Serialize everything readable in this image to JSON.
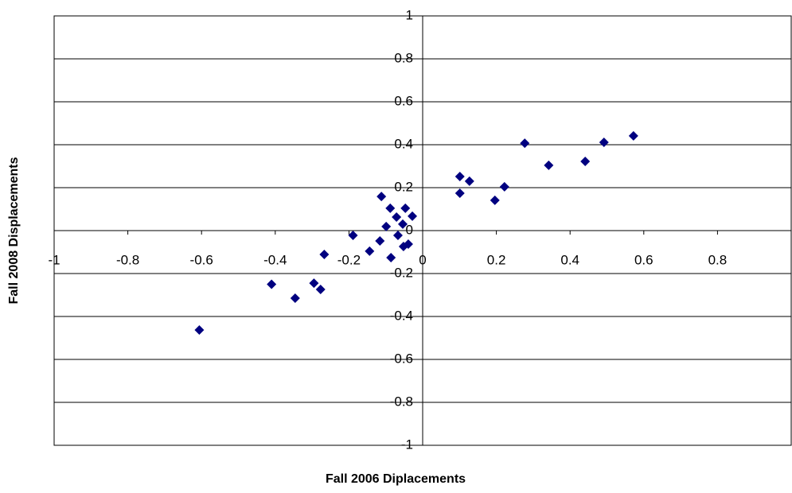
{
  "chart_data": {
    "type": "scatter",
    "x_label": "Fall 2006 Diplacements",
    "y_label": "Fall 2008 Displacements",
    "xlim": [
      -1,
      1
    ],
    "ylim": [
      -1,
      1
    ],
    "xticks": [
      -1,
      -0.8,
      -0.6,
      -0.4,
      -0.2,
      0,
      0.2,
      0.4,
      0.6,
      0.8
    ],
    "yticks": [
      -1,
      -0.8,
      -0.6,
      -0.4,
      -0.2,
      0,
      0.2,
      0.4,
      0.6,
      0.8,
      1
    ],
    "grid": true,
    "color": "#000080",
    "x": [
      -0.606,
      -0.41,
      -0.346,
      -0.295,
      -0.277,
      -0.267,
      -0.189,
      -0.144,
      -0.112,
      -0.116,
      -0.099,
      -0.088,
      -0.086,
      -0.071,
      -0.067,
      -0.054,
      -0.052,
      -0.047,
      -0.039,
      -0.028,
      0.101,
      0.101,
      0.127,
      0.196,
      0.222,
      0.277,
      0.342,
      0.441,
      0.492,
      0.572
    ],
    "y": [
      -0.463,
      -0.25,
      -0.315,
      -0.245,
      -0.274,
      -0.111,
      -0.022,
      -0.096,
      0.159,
      -0.048,
      0.019,
      0.104,
      -0.126,
      0.063,
      -0.022,
      0.03,
      -0.074,
      0.104,
      -0.063,
      0.067,
      0.252,
      0.174,
      0.23,
      0.141,
      0.204,
      0.407,
      0.304,
      0.322,
      0.411,
      0.441
    ]
  }
}
